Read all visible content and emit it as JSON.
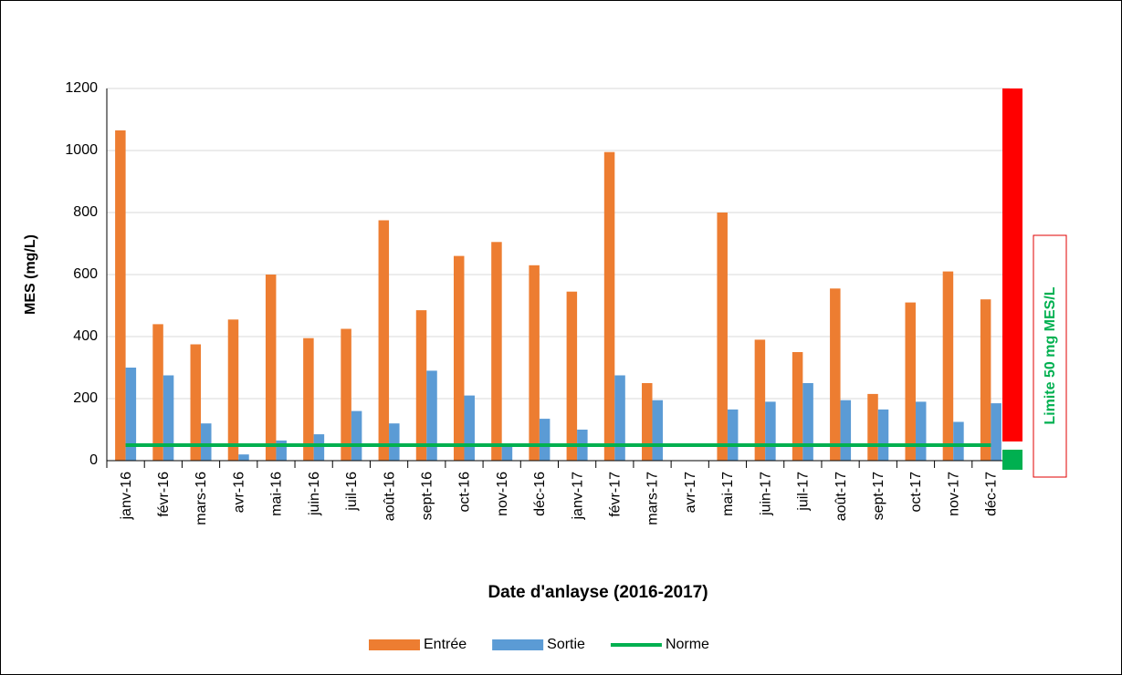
{
  "chart_data": {
    "type": "bar",
    "xlabel": "Date d'anlayse (2016-2017)",
    "ylabel": "MES (mg/L)",
    "annotation": "Limite 50 mg MES/L",
    "categories": [
      "janv-16",
      "févr-16",
      "mars-16",
      "avr-16",
      "mai-16",
      "juin-16",
      "juil-16",
      "août-16",
      "sept-16",
      "oct-16",
      "nov-16",
      "déc-16",
      "janv-17",
      "févr-17",
      "mars-17",
      "avr-17",
      "mai-17",
      "juin-17",
      "juil-17",
      "août-17",
      "sept-17",
      "oct-17",
      "nov-17",
      "déc-17"
    ],
    "series": [
      {
        "name": "Entrée",
        "color": "#ed7d31",
        "kind": "bar",
        "values": [
          1065,
          440,
          375,
          455,
          600,
          395,
          425,
          775,
          485,
          660,
          705,
          630,
          545,
          995,
          250,
          null,
          800,
          390,
          350,
          555,
          215,
          510,
          610,
          520
        ]
      },
      {
        "name": "Sortie",
        "color": "#5b9bd5",
        "kind": "bar",
        "values": [
          300,
          275,
          120,
          20,
          65,
          85,
          160,
          120,
          290,
          210,
          50,
          135,
          100,
          275,
          195,
          null,
          165,
          190,
          250,
          195,
          165,
          190,
          125,
          185
        ]
      },
      {
        "name": "Norme",
        "color": "#00b050",
        "kind": "line",
        "values": [
          50,
          50,
          50,
          50,
          50,
          50,
          50,
          50,
          50,
          50,
          50,
          50,
          50,
          50,
          50,
          50,
          50,
          50,
          50,
          50,
          50,
          50,
          50,
          50
        ]
      }
    ],
    "ylim": [
      0,
      1200
    ],
    "yticks": [
      0,
      200,
      400,
      600,
      800,
      1000,
      1200
    ],
    "grid": true,
    "legend": "bottom"
  }
}
